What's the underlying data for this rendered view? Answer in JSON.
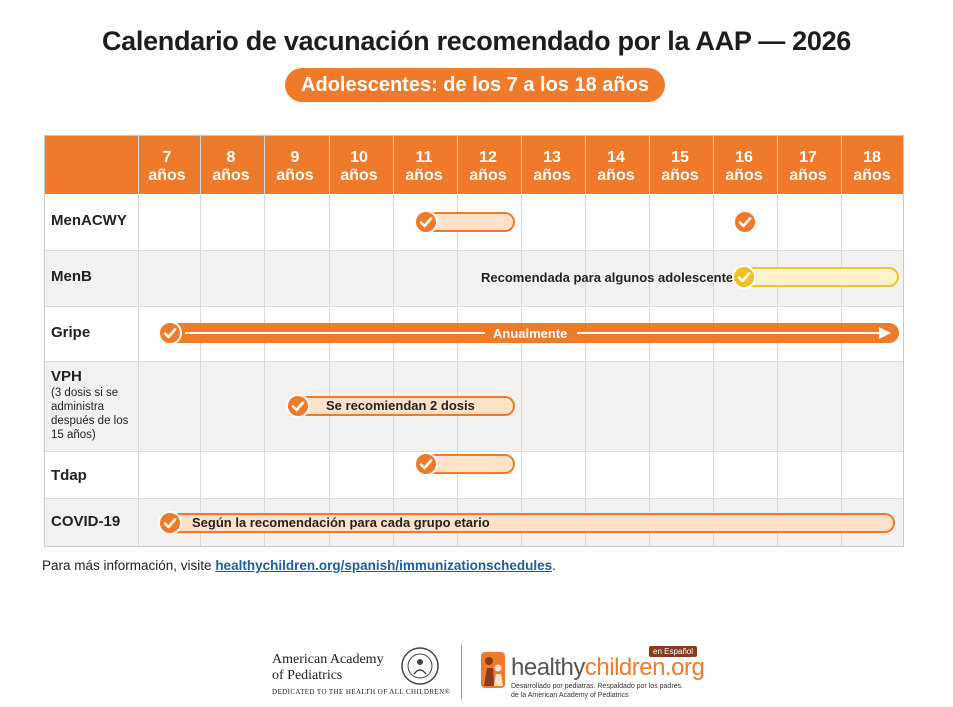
{
  "title": "Calendario de vacunación recomendado por la AAP — 2026",
  "subtitle": "Adolescentes: de los 7 a los 18 años",
  "ages": [
    {
      "n": "7",
      "u": "años"
    },
    {
      "n": "8",
      "u": "años"
    },
    {
      "n": "9",
      "u": "años"
    },
    {
      "n": "10",
      "u": "años"
    },
    {
      "n": "11",
      "u": "años"
    },
    {
      "n": "12",
      "u": "años"
    },
    {
      "n": "13",
      "u": "años"
    },
    {
      "n": "14",
      "u": "años"
    },
    {
      "n": "15",
      "u": "años"
    },
    {
      "n": "16",
      "u": "años"
    },
    {
      "n": "17",
      "u": "años"
    },
    {
      "n": "18",
      "u": "años"
    }
  ],
  "vaccines": {
    "menacwy": {
      "label": "MenACWY"
    },
    "menb": {
      "label": "MenB",
      "note": "Recomendada para algunos adolescentes"
    },
    "gripe": {
      "label": "Gripe",
      "note": "Anualmente"
    },
    "vph": {
      "label": "VPH",
      "sublabel": "(3 dosis si se administra después de los 15 años)",
      "note": "Se recomiendan 2 dosis"
    },
    "tdap": {
      "label": "Tdap"
    },
    "covid": {
      "label": "COVID-19",
      "note": "Según la recomendación para cada grupo etario"
    }
  },
  "footer": {
    "text": "Para más información, visite ",
    "link": "healthychildren.org/spanish/immunizationschedules",
    "end": "."
  },
  "logos": {
    "aap_line1": "American Academy",
    "aap_line2": "of Pediatrics",
    "aap_tagline": "DEDICATED TO THE HEALTH OF ALL CHILDREN®",
    "hc_word_a": "healthy",
    "hc_word_b": "children.org",
    "hc_badge": "en Español",
    "hc_sub1": "Desarrollado por pediatras. Respaldado por los padres.",
    "hc_sub2": "de la American Academy of Pediatrics"
  },
  "colors": {
    "accent": "#ef7a2a",
    "menb": "#f2c230",
    "link": "#1f5fa0"
  }
}
